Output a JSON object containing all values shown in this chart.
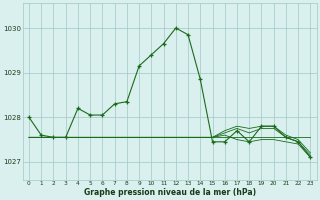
{
  "hours": [
    0,
    1,
    2,
    3,
    4,
    5,
    6,
    7,
    8,
    9,
    10,
    11,
    12,
    13,
    14,
    15,
    16,
    17,
    18,
    19,
    20,
    21,
    22,
    23
  ],
  "main_line": [
    1028.0,
    1027.6,
    1027.55,
    1027.55,
    1028.2,
    1028.05,
    1028.05,
    1028.3,
    1028.35,
    1029.15,
    1029.4,
    1029.65,
    1030.0,
    1029.85,
    1028.85,
    1027.45,
    1027.45,
    1027.7,
    1027.45,
    1027.8,
    1027.8,
    1027.55,
    1027.45,
    1027.1
  ],
  "line2": [
    1027.55,
    1027.55,
    1027.55,
    1027.55,
    1027.55,
    1027.55,
    1027.55,
    1027.55,
    1027.55,
    1027.55,
    1027.55,
    1027.55,
    1027.55,
    1027.55,
    1027.55,
    1027.55,
    1027.55,
    1027.55,
    1027.55,
    1027.55,
    1027.55,
    1027.55,
    1027.55,
    1027.55
  ],
  "line3": [
    1027.55,
    1027.55,
    1027.55,
    1027.55,
    1027.55,
    1027.55,
    1027.55,
    1027.55,
    1027.55,
    1027.55,
    1027.55,
    1027.55,
    1027.55,
    1027.55,
    1027.55,
    1027.55,
    1027.65,
    1027.75,
    1027.65,
    1027.75,
    1027.75,
    1027.55,
    1027.45,
    1027.15
  ],
  "line4": [
    1027.55,
    1027.55,
    1027.55,
    1027.55,
    1027.55,
    1027.55,
    1027.55,
    1027.55,
    1027.55,
    1027.55,
    1027.55,
    1027.55,
    1027.55,
    1027.55,
    1027.55,
    1027.55,
    1027.6,
    1027.5,
    1027.45,
    1027.5,
    1027.5,
    1027.45,
    1027.4,
    1027.1
  ],
  "line5": [
    1027.55,
    1027.55,
    1027.55,
    1027.55,
    1027.55,
    1027.55,
    1027.55,
    1027.55,
    1027.55,
    1027.55,
    1027.55,
    1027.55,
    1027.55,
    1027.55,
    1027.55,
    1027.55,
    1027.7,
    1027.8,
    1027.75,
    1027.8,
    1027.8,
    1027.6,
    1027.5,
    1027.2
  ],
  "ylim_min": 1026.6,
  "ylim_max": 1030.55,
  "yticks": [
    1027,
    1028,
    1029,
    1030
  ],
  "xtick_labels": [
    "0",
    "1",
    "2",
    "3",
    "4",
    "5",
    "6",
    "7",
    "8",
    "9",
    "10",
    "11",
    "12",
    "13",
    "14",
    "15",
    "16",
    "17",
    "18",
    "19",
    "20",
    "21",
    "22",
    "23"
  ],
  "xlabel": "Graphe pression niveau de la mer (hPa)",
  "line_color": "#1a6b1a",
  "bg_color": "#daf0ee",
  "grid_color": "#a0c8c8",
  "spine_color": "#a0c8c8"
}
